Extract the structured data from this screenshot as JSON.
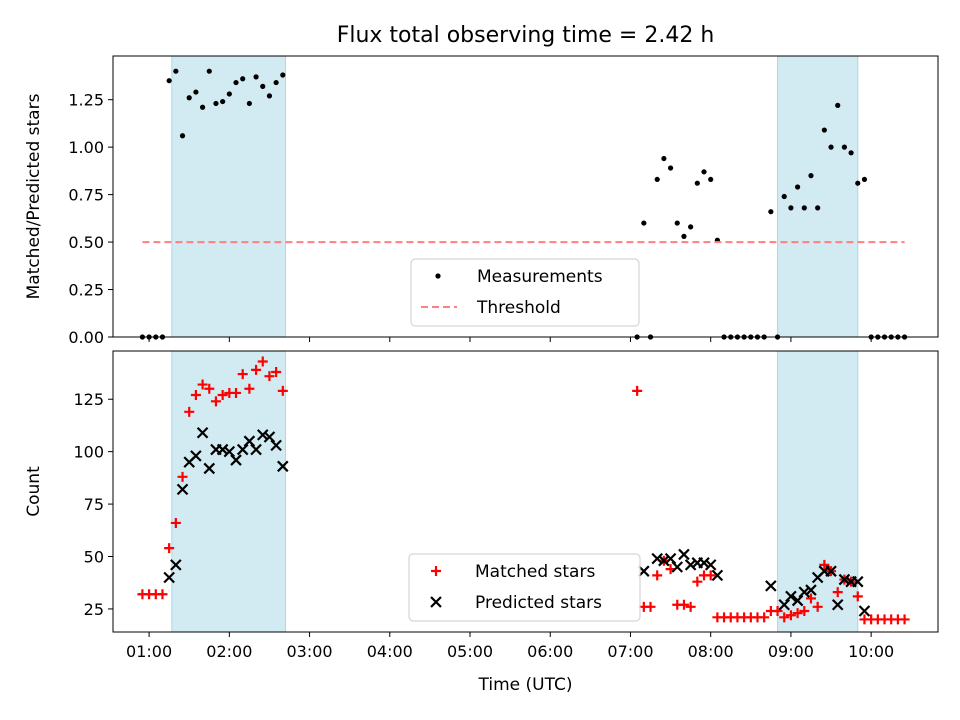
{
  "chart_data": [
    {
      "type": "scatter",
      "title": "Flux total observing time = 2.42 h",
      "xlabel": "",
      "ylabel": "Matched/Predicted stars",
      "xlim": [
        "00:33",
        "10:50"
      ],
      "ylim": [
        0,
        1.48
      ],
      "yticks": [
        "0.00",
        "0.25",
        "0.50",
        "0.75",
        "1.00",
        "1.25"
      ],
      "shaded_spans": [
        [
          "01:17",
          "02:42"
        ],
        [
          "08:50",
          "09:50"
        ]
      ],
      "shade_color": "#add8e6",
      "legend": {
        "position": "lower-center",
        "entries": [
          "Measurements",
          "Threshold"
        ]
      },
      "series": [
        {
          "name": "Measurements",
          "marker": "dot",
          "color": "#000000",
          "points": [
            [
              "00:55",
              0
            ],
            [
              "01:00",
              0
            ],
            [
              "01:05",
              0
            ],
            [
              "01:10",
              0
            ],
            [
              "01:15",
              1.35
            ],
            [
              "01:20",
              1.4
            ],
            [
              "01:25",
              1.06
            ],
            [
              "01:30",
              1.26
            ],
            [
              "01:35",
              1.29
            ],
            [
              "01:40",
              1.21
            ],
            [
              "01:45",
              1.4
            ],
            [
              "01:50",
              1.23
            ],
            [
              "01:55",
              1.24
            ],
            [
              "02:00",
              1.28
            ],
            [
              "02:05",
              1.34
            ],
            [
              "02:10",
              1.36
            ],
            [
              "02:15",
              1.23
            ],
            [
              "02:20",
              1.37
            ],
            [
              "02:25",
              1.32
            ],
            [
              "02:30",
              1.27
            ],
            [
              "02:35",
              1.34
            ],
            [
              "02:40",
              1.38
            ],
            [
              "07:05",
              0
            ],
            [
              "07:10",
              0.6
            ],
            [
              "07:15",
              0
            ],
            [
              "07:20",
              0.83
            ],
            [
              "07:25",
              0.94
            ],
            [
              "07:30",
              0.89
            ],
            [
              "07:35",
              0.6
            ],
            [
              "07:40",
              0.53
            ],
            [
              "07:45",
              0.58
            ],
            [
              "07:50",
              0.81
            ],
            [
              "07:55",
              0.87
            ],
            [
              "08:00",
              0.83
            ],
            [
              "08:05",
              0.51
            ],
            [
              "08:10",
              0
            ],
            [
              "08:15",
              0
            ],
            [
              "08:20",
              0
            ],
            [
              "08:25",
              0
            ],
            [
              "08:30",
              0
            ],
            [
              "08:35",
              0
            ],
            [
              "08:40",
              0
            ],
            [
              "08:45",
              0.66
            ],
            [
              "08:50",
              0
            ],
            [
              "08:55",
              0.74
            ],
            [
              "09:00",
              0.68
            ],
            [
              "09:05",
              0.79
            ],
            [
              "09:10",
              0.68
            ],
            [
              "09:15",
              0.85
            ],
            [
              "09:20",
              0.68
            ],
            [
              "09:25",
              1.09
            ],
            [
              "09:30",
              1.0
            ],
            [
              "09:35",
              1.22
            ],
            [
              "09:40",
              1.0
            ],
            [
              "09:45",
              0.97
            ],
            [
              "09:50",
              0.81
            ],
            [
              "09:55",
              0.83
            ],
            [
              "10:00",
              0
            ],
            [
              "10:05",
              0
            ],
            [
              "10:10",
              0
            ],
            [
              "10:15",
              0
            ],
            [
              "10:20",
              0
            ],
            [
              "10:25",
              0
            ]
          ]
        },
        {
          "name": "Threshold",
          "style": "dashed-line",
          "color": "#ff7f7f",
          "points": [
            [
              "00:55",
              0.5
            ],
            [
              "10:25",
              0.5
            ]
          ]
        }
      ]
    },
    {
      "type": "scatter",
      "title": "",
      "xlabel": "Time (UTC)",
      "ylabel": "Count",
      "xlim": [
        "00:33",
        "10:50"
      ],
      "ylim": [
        14,
        148
      ],
      "yticks": [
        "25",
        "50",
        "75",
        "100",
        "125"
      ],
      "xticks": [
        "01:00",
        "02:00",
        "03:00",
        "04:00",
        "05:00",
        "06:00",
        "07:00",
        "08:00",
        "09:00",
        "10:00"
      ],
      "shaded_spans": [
        [
          "01:17",
          "02:42"
        ],
        [
          "08:50",
          "09:50"
        ]
      ],
      "shade_color": "#add8e6",
      "legend": {
        "position": "lower-center",
        "entries": [
          "Matched stars",
          "Predicted stars"
        ]
      },
      "series": [
        {
          "name": "Matched stars",
          "marker": "plus",
          "color": "#ff0000",
          "points": [
            [
              "00:55",
              32
            ],
            [
              "01:00",
              32
            ],
            [
              "01:05",
              32
            ],
            [
              "01:10",
              32
            ],
            [
              "01:15",
              54
            ],
            [
              "01:20",
              66
            ],
            [
              "01:25",
              88
            ],
            [
              "01:30",
              119
            ],
            [
              "01:35",
              127
            ],
            [
              "01:40",
              132
            ],
            [
              "01:45",
              130
            ],
            [
              "01:50",
              124
            ],
            [
              "01:55",
              127
            ],
            [
              "02:00",
              128
            ],
            [
              "02:05",
              128
            ],
            [
              "02:10",
              137
            ],
            [
              "02:15",
              130
            ],
            [
              "02:20",
              139
            ],
            [
              "02:25",
              143
            ],
            [
              "02:30",
              136
            ],
            [
              "02:35",
              138
            ],
            [
              "02:40",
              129
            ],
            [
              "07:05",
              129
            ],
            [
              "07:10",
              26
            ],
            [
              "07:15",
              26
            ],
            [
              "07:20",
              41
            ],
            [
              "07:25",
              48
            ],
            [
              "07:30",
              44
            ],
            [
              "07:35",
              27
            ],
            [
              "07:40",
              27
            ],
            [
              "07:45",
              26
            ],
            [
              "07:50",
              38
            ],
            [
              "07:55",
              41
            ],
            [
              "08:00",
              41
            ],
            [
              "08:05",
              21
            ],
            [
              "08:10",
              21
            ],
            [
              "08:15",
              21
            ],
            [
              "08:20",
              21
            ],
            [
              "08:25",
              21
            ],
            [
              "08:30",
              21
            ],
            [
              "08:35",
              21
            ],
            [
              "08:40",
              21
            ],
            [
              "08:45",
              24
            ],
            [
              "08:50",
              24
            ],
            [
              "08:55",
              21
            ],
            [
              "09:00",
              22
            ],
            [
              "09:05",
              23
            ],
            [
              "09:10",
              24
            ],
            [
              "09:15",
              30
            ],
            [
              "09:20",
              26
            ],
            [
              "09:25",
              46
            ],
            [
              "09:30",
              43
            ],
            [
              "09:35",
              33
            ],
            [
              "09:40",
              39
            ],
            [
              "09:45",
              38
            ],
            [
              "09:50",
              31
            ],
            [
              "09:55",
              20
            ],
            [
              "10:00",
              20
            ],
            [
              "10:05",
              20
            ],
            [
              "10:10",
              20
            ],
            [
              "10:15",
              20
            ],
            [
              "10:20",
              20
            ],
            [
              "10:25",
              20
            ]
          ]
        },
        {
          "name": "Predicted stars",
          "marker": "x",
          "color": "#000000",
          "points": [
            [
              "01:15",
              40
            ],
            [
              "01:20",
              46
            ],
            [
              "01:25",
              82
            ],
            [
              "01:30",
              95
            ],
            [
              "01:35",
              98
            ],
            [
              "01:40",
              109
            ],
            [
              "01:45",
              92
            ],
            [
              "01:50",
              101
            ],
            [
              "01:55",
              101
            ],
            [
              "02:00",
              100
            ],
            [
              "02:05",
              96
            ],
            [
              "02:10",
              101
            ],
            [
              "02:15",
              105
            ],
            [
              "02:20",
              101
            ],
            [
              "02:25",
              108
            ],
            [
              "02:30",
              107
            ],
            [
              "02:35",
              103
            ],
            [
              "02:40",
              93
            ],
            [
              "07:10",
              43
            ],
            [
              "07:20",
              49
            ],
            [
              "07:25",
              48
            ],
            [
              "07:30",
              49
            ],
            [
              "07:35",
              45
            ],
            [
              "07:40",
              51
            ],
            [
              "07:45",
              46
            ],
            [
              "07:50",
              47
            ],
            [
              "07:55",
              47
            ],
            [
              "08:00",
              46
            ],
            [
              "08:05",
              41
            ],
            [
              "08:45",
              36
            ],
            [
              "08:55",
              27
            ],
            [
              "09:00",
              31
            ],
            [
              "09:05",
              29
            ],
            [
              "09:10",
              33
            ],
            [
              "09:15",
              34
            ],
            [
              "09:20",
              40
            ],
            [
              "09:25",
              43
            ],
            [
              "09:30",
              43
            ],
            [
              "09:35",
              27
            ],
            [
              "09:40",
              39
            ],
            [
              "09:45",
              38
            ],
            [
              "09:50",
              38
            ],
            [
              "09:55",
              24
            ]
          ]
        }
      ]
    }
  ]
}
